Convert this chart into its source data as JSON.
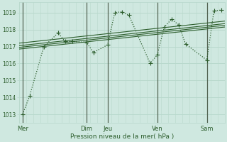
{
  "bg_color": "#cfe8e0",
  "grid_color": "#b8d8cc",
  "line_color": "#2d5e2d",
  "xlabel": "Pression niveau de la mer( hPa )",
  "ylim": [
    1012.5,
    1019.6
  ],
  "yticks": [
    1013,
    1014,
    1015,
    1016,
    1017,
    1018,
    1019
  ],
  "day_labels": [
    "Mer",
    "Dim",
    "Jeu",
    "Ven",
    "Sam"
  ],
  "day_positions": [
    0,
    9,
    12,
    19,
    26
  ],
  "xlim": [
    -0.5,
    28.5
  ],
  "main_x": [
    0,
    1,
    3,
    5,
    6,
    7,
    9,
    10,
    12,
    13,
    14,
    15,
    18,
    19,
    20,
    21,
    22,
    23,
    26,
    27,
    28
  ],
  "main_y": [
    1013.0,
    1014.1,
    1017.0,
    1017.8,
    1017.3,
    1017.3,
    1017.25,
    1016.65,
    1017.1,
    1019.0,
    1019.05,
    1018.85,
    1016.0,
    1016.5,
    1018.15,
    1018.6,
    1018.3,
    1017.15,
    1016.2,
    1019.1,
    1019.15
  ],
  "trend_lines": [
    {
      "x": [
        -0.5,
        28.5
      ],
      "y": [
        1016.85,
        1018.15
      ]
    },
    {
      "x": [
        -0.5,
        28.5
      ],
      "y": [
        1016.95,
        1018.25
      ]
    },
    {
      "x": [
        -0.5,
        28.5
      ],
      "y": [
        1017.05,
        1018.35
      ]
    },
    {
      "x": [
        -0.5,
        28.5
      ],
      "y": [
        1017.2,
        1018.5
      ]
    }
  ],
  "sep_positions": [
    0,
    9,
    12,
    19,
    26
  ],
  "sep_color": "#556655",
  "marker_style": "+",
  "marker_size": 4,
  "line_style": ":",
  "line_width": 0.9,
  "trend_lw": 0.8
}
